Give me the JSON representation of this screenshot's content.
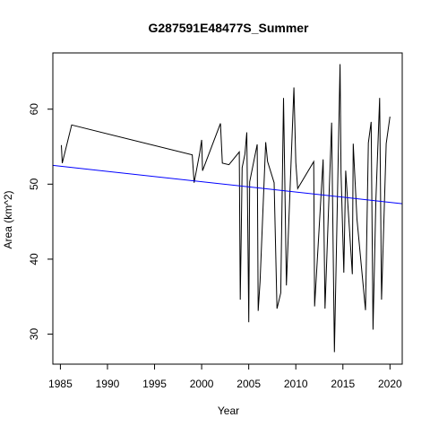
{
  "chart_data": {
    "type": "line",
    "title": "G287591E48477S_Summer",
    "xlabel": "Year",
    "ylabel": "Area (km^2)",
    "xlim": [
      1984.2,
      2021.3
    ],
    "ylim": [
      26.0,
      67.5
    ],
    "xticks": [
      1985,
      1990,
      1995,
      2000,
      2005,
      2010,
      2015,
      2020
    ],
    "yticks": [
      30,
      40,
      50,
      60
    ],
    "grid": false,
    "legend": "none",
    "series": [
      {
        "color": "#000000",
        "points": [
          [
            1985.1,
            55.2
          ],
          [
            1985.2,
            52.8
          ],
          [
            1986.2,
            57.9
          ],
          [
            1999.0,
            53.9
          ],
          [
            1999.2,
            50.2
          ],
          [
            1999.8,
            54.2
          ],
          [
            2000.0,
            55.9
          ],
          [
            2000.1,
            51.8
          ],
          [
            2002.0,
            58.1
          ],
          [
            2002.2,
            52.8
          ],
          [
            2002.9,
            52.6
          ],
          [
            2004.0,
            54.3
          ],
          [
            2004.1,
            34.6
          ],
          [
            2004.2,
            42.6
          ],
          [
            2004.3,
            52.2
          ],
          [
            2004.6,
            54.0
          ],
          [
            2004.8,
            56.9
          ],
          [
            2005.0,
            31.6
          ],
          [
            2005.1,
            50.3
          ],
          [
            2005.9,
            55.3
          ],
          [
            2006.0,
            33.1
          ],
          [
            2006.2,
            37.0
          ],
          [
            2006.8,
            55.6
          ],
          [
            2007.0,
            53.0
          ],
          [
            2007.7,
            50.2
          ],
          [
            2008.0,
            33.4
          ],
          [
            2008.4,
            35.5
          ],
          [
            2008.7,
            61.5
          ],
          [
            2009.0,
            36.5
          ],
          [
            2009.8,
            62.9
          ],
          [
            2010.0,
            52.9
          ],
          [
            2010.2,
            49.4
          ],
          [
            2011.9,
            53.0
          ],
          [
            2012.0,
            33.7
          ],
          [
            2012.9,
            53.3
          ],
          [
            2013.1,
            33.4
          ],
          [
            2013.8,
            58.2
          ],
          [
            2014.1,
            27.6
          ],
          [
            2014.7,
            66.0
          ],
          [
            2014.8,
            51.5
          ],
          [
            2015.1,
            38.2
          ],
          [
            2015.3,
            51.8
          ],
          [
            2016.0,
            38.0
          ],
          [
            2016.1,
            55.4
          ],
          [
            2016.5,
            45.3
          ],
          [
            2017.4,
            33.2
          ],
          [
            2017.7,
            55.5
          ],
          [
            2018.0,
            58.3
          ],
          [
            2018.2,
            30.6
          ],
          [
            2018.5,
            47.9
          ],
          [
            2018.9,
            61.5
          ],
          [
            2019.1,
            34.6
          ],
          [
            2019.6,
            55.4
          ],
          [
            2020.0,
            59.0
          ]
        ]
      },
      {
        "color": "#0000ff",
        "points": [
          [
            1984.2,
            52.5
          ],
          [
            2021.3,
            47.4
          ]
        ]
      }
    ]
  }
}
